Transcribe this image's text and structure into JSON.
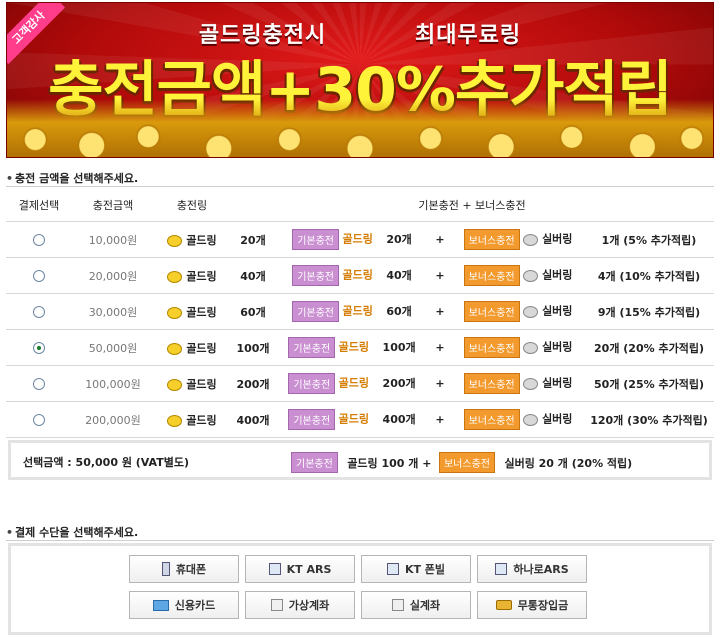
{
  "banner": {
    "ribbon": "고객감사",
    "line_left": "골드링충전시",
    "line_right": "최대무료링",
    "headline": "충전금액+30%추가적립"
  },
  "amount_section": {
    "title": "충전 금액을 선택해주세요.",
    "headers": {
      "select": "결제선택",
      "price": "충전금액",
      "ring": "충전링",
      "detail": "기본충전 + 보너스충전"
    },
    "labels": {
      "gold": "골드링",
      "silver": "실버링",
      "basic_tag": "기본충전",
      "bonus_tag": "보너스충전",
      "plus": "+"
    },
    "rows": [
      {
        "price": "10,000원",
        "gold_count": "20개",
        "basic_count": "20개",
        "bonus": "1개 (5% 추가적립)",
        "selected": false
      },
      {
        "price": "20,000원",
        "gold_count": "40개",
        "basic_count": "40개",
        "bonus": "4개 (10% 추가적립)",
        "selected": false
      },
      {
        "price": "30,000원",
        "gold_count": "60개",
        "basic_count": "60개",
        "bonus": "9개 (15% 추가적립)",
        "selected": false
      },
      {
        "price": "50,000원",
        "gold_count": "100개",
        "basic_count": "100개",
        "bonus": "20개 (20% 추가적립)",
        "selected": true
      },
      {
        "price": "100,000원",
        "gold_count": "200개",
        "basic_count": "200개",
        "bonus": "50개 (25% 추가적립)",
        "selected": false
      },
      {
        "price": "200,000원",
        "gold_count": "400개",
        "basic_count": "400개",
        "bonus": "120개 (30% 추가적립)",
        "selected": false
      }
    ]
  },
  "summary": {
    "label": "선택금액 : 50,000 원 (VAT별도)",
    "basic_tag": "기본충전",
    "gold_text": "골드링 100 개 +",
    "bonus_tag": "보너스충전",
    "silver_text": "실버링 20 개 (20% 적립)"
  },
  "payment_section": {
    "title": "결제 수단을 선택해주세요.",
    "buttons": [
      {
        "label": "휴대폰",
        "icon": "mobile-phone-icon"
      },
      {
        "label": "KT ARS",
        "icon": "telephone-icon"
      },
      {
        "label": "KT 폰빌",
        "icon": "telephone-icon"
      },
      {
        "label": "하나로ARS",
        "icon": "telephone-icon"
      },
      {
        "label": "신용카드",
        "icon": "credit-card-icon"
      },
      {
        "label": "가상계좌",
        "icon": "account-list-icon"
      },
      {
        "label": "실계좌",
        "icon": "account-list-icon"
      },
      {
        "label": "무통장입금",
        "icon": "coins-icon"
      }
    ]
  },
  "colors": {
    "basic_tag": "#c98fd1",
    "bonus_tag": "#f29a2e",
    "gold_text": "#d57c00",
    "banner_red": "#c01010",
    "headline_yellow": "#fff33a"
  }
}
